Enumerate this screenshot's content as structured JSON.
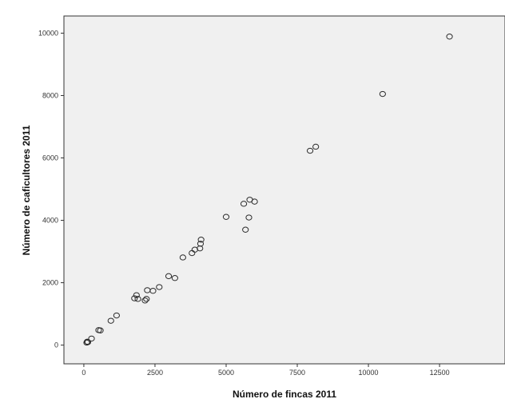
{
  "chart_data": {
    "type": "scatter",
    "title": "",
    "xlabel": "Número de fincas 2011",
    "ylabel": "Número de caficultores 2011",
    "xlim": [
      -700,
      14800
    ],
    "ylim": [
      -600,
      10550
    ],
    "x_ticks": [
      {
        "value": 0,
        "label": "0"
      },
      {
        "value": 2500,
        "label": "2500"
      },
      {
        "value": 5000,
        "label": "5000"
      },
      {
        "value": 7500,
        "label": "7500"
      },
      {
        "value": 10000,
        "label": "10000"
      },
      {
        "value": 12500,
        "label": "12500"
      }
    ],
    "y_ticks": [
      {
        "value": 0,
        "label": "0"
      },
      {
        "value": 2000,
        "label": "2000"
      },
      {
        "value": 4000,
        "label": "4000"
      },
      {
        "value": 6000,
        "label": "6000"
      },
      {
        "value": 8000,
        "label": "8000"
      },
      {
        "value": 10000,
        "label": "10000"
      }
    ],
    "grid": false,
    "legend": "none",
    "colors": {
      "plot_background": "#f0f0f0",
      "marker_stroke": "#2b2b2b",
      "frame": "#333333"
    },
    "points": [
      {
        "x": 100,
        "y": 80
      },
      {
        "x": 120,
        "y": 110
      },
      {
        "x": 140,
        "y": 95
      },
      {
        "x": 270,
        "y": 210
      },
      {
        "x": 520,
        "y": 480
      },
      {
        "x": 580,
        "y": 470
      },
      {
        "x": 950,
        "y": 780
      },
      {
        "x": 1150,
        "y": 950
      },
      {
        "x": 1780,
        "y": 1500
      },
      {
        "x": 1850,
        "y": 1600
      },
      {
        "x": 1900,
        "y": 1480
      },
      {
        "x": 2150,
        "y": 1430
      },
      {
        "x": 2200,
        "y": 1480
      },
      {
        "x": 2230,
        "y": 1760
      },
      {
        "x": 2430,
        "y": 1740
      },
      {
        "x": 2650,
        "y": 1860
      },
      {
        "x": 2980,
        "y": 2210
      },
      {
        "x": 3200,
        "y": 2150
      },
      {
        "x": 3480,
        "y": 2810
      },
      {
        "x": 3800,
        "y": 2950
      },
      {
        "x": 3900,
        "y": 3060
      },
      {
        "x": 4080,
        "y": 3100
      },
      {
        "x": 4100,
        "y": 3250
      },
      {
        "x": 4120,
        "y": 3380
      },
      {
        "x": 5000,
        "y": 4110
      },
      {
        "x": 5620,
        "y": 4530
      },
      {
        "x": 5680,
        "y": 3700
      },
      {
        "x": 5800,
        "y": 4090
      },
      {
        "x": 5830,
        "y": 4660
      },
      {
        "x": 6000,
        "y": 4600
      },
      {
        "x": 7950,
        "y": 6230
      },
      {
        "x": 8150,
        "y": 6360
      },
      {
        "x": 10500,
        "y": 8050
      },
      {
        "x": 12850,
        "y": 9890
      }
    ]
  }
}
